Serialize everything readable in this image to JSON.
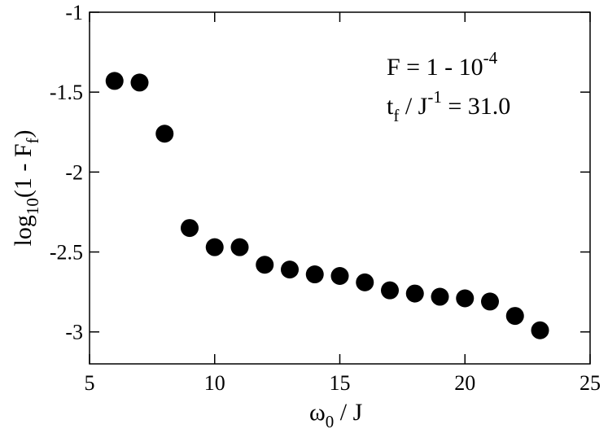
{
  "chart_data": {
    "type": "scatter",
    "xlabel": {
      "base": "ω",
      "sub": "0",
      "rest": " / J"
    },
    "ylabel": {
      "base": "log",
      "sub": "10",
      "mid": "(1 - F",
      "sub2": "f",
      "end": ")"
    },
    "xlim": [
      5,
      25
    ],
    "ylim": [
      -3.2,
      -1
    ],
    "xticks": [
      5,
      10,
      15,
      20,
      25
    ],
    "xtick_labels": [
      "5",
      "10",
      "15",
      "20",
      "25"
    ],
    "yticks": [
      -3,
      -2.5,
      -2,
      -1.5,
      -1
    ],
    "ytick_labels": [
      "-3",
      "-2.5",
      "-2",
      "-1.5",
      "-1"
    ],
    "grid": false,
    "legend": "none",
    "marker_color": "#000000",
    "series": [
      {
        "x": [
          6,
          7,
          8,
          9,
          10,
          11,
          12,
          13,
          14,
          15,
          16,
          17,
          18,
          19,
          20,
          21,
          22,
          23
        ],
        "y": [
          -1.43,
          -1.44,
          -1.76,
          -2.35,
          -2.47,
          -2.47,
          -2.58,
          -2.61,
          -2.64,
          -2.65,
          -2.69,
          -2.74,
          -2.76,
          -2.78,
          -2.79,
          -2.81,
          -2.9,
          -2.99
        ]
      }
    ],
    "annotations": [
      {
        "base": "F = 1 - 10",
        "sup": "-4"
      },
      {
        "base": "t",
        "sub": "f",
        "mid": " / J",
        "sup": "-1",
        "end": " = 31.0"
      }
    ]
  }
}
